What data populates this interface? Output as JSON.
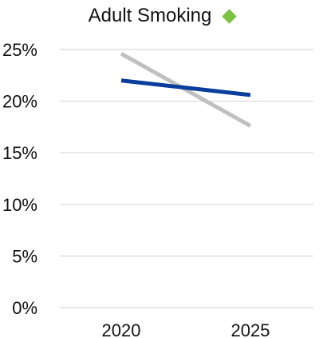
{
  "chart_data": {
    "type": "line",
    "title": "Adult Smoking",
    "title_indicator_color": "#7dc242",
    "title_indicator_icon": "diamond-icon",
    "x": [
      "2020",
      "2025"
    ],
    "series": [
      {
        "values": [
          22.0,
          20.6
        ],
        "color": "#0a3d9c"
      },
      {
        "values": [
          24.6,
          17.6
        ],
        "color": "#c0c0c0"
      }
    ],
    "ylim": [
      0,
      25
    ],
    "yticks": [
      0,
      5,
      10,
      15,
      20,
      25
    ],
    "ytick_labels": [
      "0%",
      "5%",
      "10%",
      "15%",
      "20%",
      "25%"
    ],
    "grid": true,
    "legend": "none"
  }
}
